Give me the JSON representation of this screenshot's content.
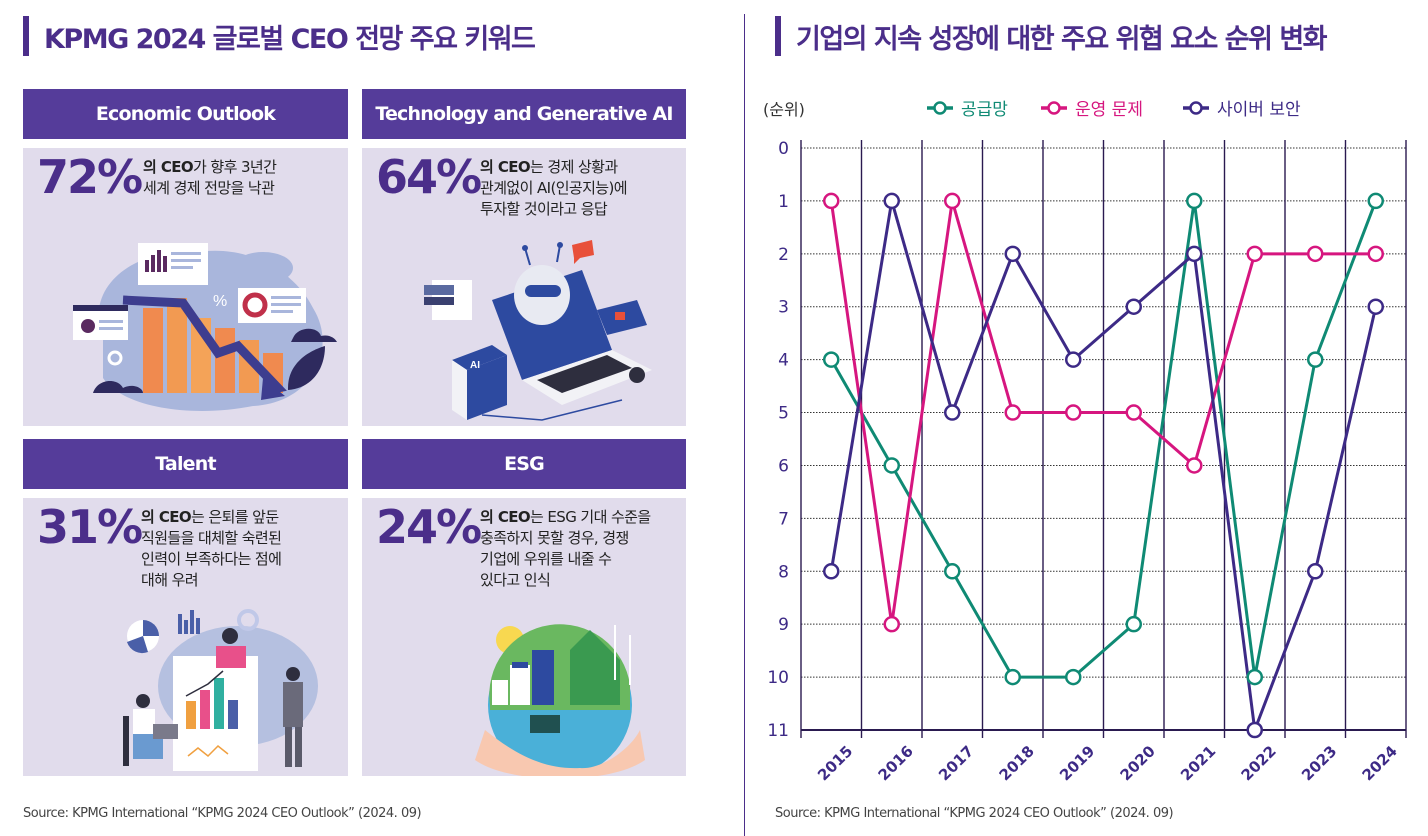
{
  "left": {
    "title": "KPMG 2024 글로벌 CEO 전망 주요 키워드",
    "cards": [
      {
        "header": "Economic Outlook",
        "percent": "72%",
        "lead": "의 CEO",
        "lines": [
          "가 향후 3년간",
          "세계 경제 전망을 낙관"
        ],
        "illustration": "declining-chart-illustration"
      },
      {
        "header": "Technology and Generative AI",
        "percent": "64%",
        "lead": "의 CEO",
        "lines": [
          "는 경제 상황과",
          "관계없이 AI(인공지능)에",
          "투자할 것이라고 응답"
        ],
        "illustration": "ai-robot-laptop-illustration"
      },
      {
        "header": "Talent",
        "percent": "31%",
        "lead": "의 CEO",
        "lines": [
          "는 은퇴를 앞둔",
          "직원들을 대체할 숙련된",
          "인력이  부족하다는 점에",
          "대해 우려"
        ],
        "illustration": "team-presentation-illustration"
      },
      {
        "header": "ESG",
        "percent": "24%",
        "lead": "의 CEO",
        "lines": [
          "는 ESG 기대 수준을",
          "충족하지 못할 경우, 경쟁",
          "기업에 우위를 내줄 수",
          "있다고 인식"
        ],
        "illustration": "earth-sustainability-illustration"
      }
    ],
    "source": "Source: KPMG International “KPMG 2024 CEO Outlook” (2024. 09)"
  },
  "right": {
    "title": "기업의 지속 성장에 대한 주요 위협 요소 순위 변화",
    "source": "Source: KPMG International “KPMG 2024 CEO Outlook” (2024. 09)"
  },
  "chart_data": {
    "type": "line",
    "title": "기업의 지속 성장에 대한 주요 위협 요소 순위 변화",
    "ylabel": "(순위)",
    "xlabel": "",
    "x": [
      "2015",
      "2016",
      "2017",
      "2018",
      "2019",
      "2020",
      "2021",
      "2022",
      "2023",
      "2024"
    ],
    "ylim": [
      0,
      11
    ],
    "y_inverted": true,
    "yticks": [
      0,
      1,
      2,
      3,
      4,
      5,
      6,
      7,
      8,
      9,
      10,
      11
    ],
    "grid": true,
    "legend_position": "top",
    "series": [
      {
        "name": "공급망",
        "color": "#0f8a74",
        "values": [
          4,
          6,
          8,
          10,
          10,
          9,
          1,
          10,
          4,
          1
        ]
      },
      {
        "name": "운영 문제",
        "color": "#d6167f",
        "values": [
          1,
          9,
          1,
          5,
          5,
          5,
          6,
          2,
          2,
          2
        ]
      },
      {
        "name": "사이버 보안",
        "color": "#3d2a86",
        "values": [
          8,
          1,
          5,
          2,
          4,
          3,
          2,
          11,
          8,
          3
        ]
      }
    ]
  },
  "colors": {
    "brand": "#4b2e8a",
    "header": "#553c9a",
    "card_bg": "#e1dcec"
  }
}
